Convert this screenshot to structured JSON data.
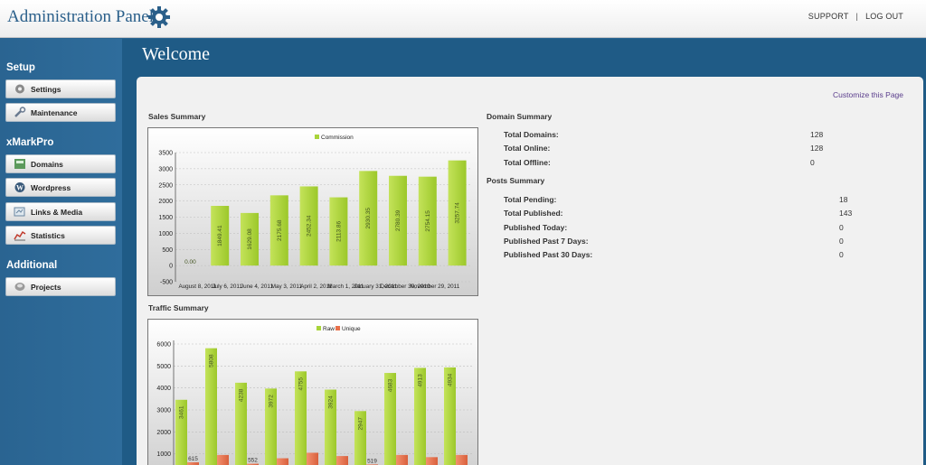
{
  "header": {
    "title": "Administration Panel",
    "nav": {
      "support": "SUPPORT",
      "separator": "|",
      "logout": "LOG OUT"
    }
  },
  "sidebar": {
    "sections": [
      {
        "heading": "Setup",
        "items": [
          {
            "label": "Settings",
            "icon": "gear-icon"
          },
          {
            "label": "Maintenance",
            "icon": "wrench-icon"
          }
        ]
      },
      {
        "heading": "xMarkPro",
        "items": [
          {
            "label": "Domains",
            "icon": "domain-icon"
          },
          {
            "label": "Wordpress",
            "icon": "wordpress-icon"
          },
          {
            "label": "Links & Media",
            "icon": "links-icon"
          },
          {
            "label": "Statistics",
            "icon": "statistics-icon"
          }
        ]
      },
      {
        "heading": "Additional",
        "items": [
          {
            "label": "Projects",
            "icon": "projects-icon"
          }
        ]
      }
    ]
  },
  "main": {
    "welcome": "Welcome",
    "customize_link": "Customize this Page",
    "sales_title": "Sales Summary",
    "traffic_title": "Traffic Summary",
    "domain_summary": {
      "title": "Domain Summary",
      "rows": [
        {
          "label": "Total Domains:",
          "value": "128"
        },
        {
          "label": "Total Online:",
          "value": "128"
        },
        {
          "label": "Total Offline:",
          "value": "0"
        }
      ]
    },
    "posts_summary": {
      "title": "Posts Summary",
      "rows": [
        {
          "label": "Total Pending:",
          "value": "18"
        },
        {
          "label": "Total Published:",
          "value": "143"
        },
        {
          "label": "Published Today:",
          "value": "0"
        },
        {
          "label": "Published Past 7 Days:",
          "value": "0"
        },
        {
          "label": "Published Past 30 Days:",
          "value": "0"
        }
      ]
    }
  },
  "colors": {
    "bar_green": "#a8d43a",
    "bar_orange": "#e8704a",
    "sidebar_blue": "#2b6592"
  },
  "chart_data": [
    {
      "type": "bar",
      "title": "",
      "series": [
        {
          "name": "Commission",
          "values": [
            0.0,
            1849.41,
            1629.08,
            2175.68,
            2452.34,
            2113.86,
            2930.35,
            2780.39,
            2754.15,
            3257.74
          ]
        }
      ],
      "categories": [
        "August 8, 2011",
        "July 6, 2011",
        "June 4, 2011",
        "May 3, 2011",
        "April 2, 2011",
        "March 1, 2011",
        "January 31, 2011",
        "December 30, 2010",
        "November 29, 2011",
        ""
      ],
      "value_labels": [
        "0.00",
        "1849.41",
        "1629.08",
        "2175.68",
        "2452.34",
        "2113.86",
        "2930.35",
        "2780.39",
        "2754.15",
        "3257.74"
      ],
      "yticks": [
        "3500",
        "3000",
        "2500",
        "2000",
        "1500",
        "1000",
        "500",
        "0",
        "-500"
      ],
      "ylim": [
        -500,
        3500
      ],
      "grid": true,
      "legend": "top"
    },
    {
      "type": "bar",
      "title": "",
      "series": [
        {
          "name": "Raw",
          "values": [
            3461,
            5808,
            4238,
            3972,
            4755,
            3924,
            2947,
            4683,
            4913,
            4934
          ]
        },
        {
          "name": "Unique",
          "values": [
            615,
            950,
            552,
            800,
            1050,
            900,
            519,
            950,
            850,
            950
          ]
        }
      ],
      "raw_labels": [
        "3461",
        "5808",
        "4238",
        "3972",
        "4755",
        "3924",
        "2947",
        "4683",
        "4913",
        "4934"
      ],
      "unique_labels": [
        "615",
        "",
        "552",
        "",
        "",
        "",
        "519",
        "",
        "",
        ""
      ],
      "yticks": [
        "6000",
        "5000",
        "4000",
        "3000",
        "2000",
        "1000"
      ],
      "ylim": [
        0,
        6000
      ],
      "grid": true,
      "legend": "top"
    }
  ]
}
